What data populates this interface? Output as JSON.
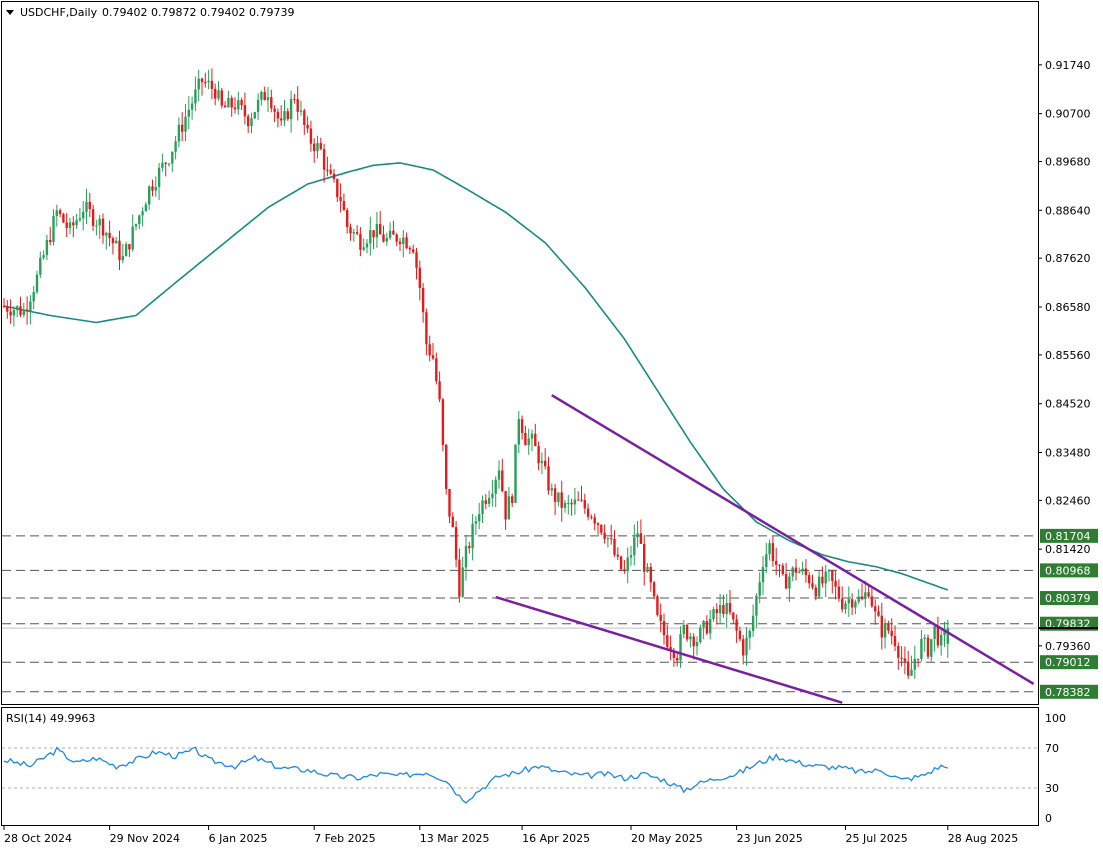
{
  "header": {
    "symbol": "USDCHF,Daily",
    "ohlc": "0.79402 0.79872 0.79402 0.79739"
  },
  "rsi_header": "RSI(14) 49.9963",
  "colors": {
    "bull": "#26a05a",
    "bear": "#e31b1b",
    "ma": "#178a84",
    "rsi": "#1e88e5",
    "trend": "#7b1fa2",
    "tag_bg": "#2e7d32",
    "grid": "#555555"
  },
  "chart_data": {
    "type": "candlestick",
    "timeframe": "Daily",
    "y_ticks": [
      "0.91740",
      "0.90700",
      "0.89680",
      "0.88640",
      "0.87620",
      "0.86580",
      "0.85560",
      "0.84520",
      "0.83480",
      "0.82460",
      "0.81420",
      "0.79360"
    ],
    "price_ylim": [
      0.781,
      0.931
    ],
    "x_labels": [
      "28 Oct 2024",
      "29 Nov 2024",
      "6 Jan 2025",
      "7 Feb 2025",
      "13 Mar 2025",
      "16 Apr 2025",
      "20 May 2025",
      "23 Jun 2025",
      "25 Jul 2025",
      "28 Aug 2025"
    ],
    "last_close": 0.79739,
    "levels": [
      {
        "label": "0.81704",
        "value": 0.81704
      },
      {
        "label": "0.80968",
        "value": 0.80968
      },
      {
        "label": "0.80379",
        "value": 0.80379
      },
      {
        "label": "0.79832",
        "value": 0.79832
      },
      {
        "label": "0.79012",
        "value": 0.79012
      },
      {
        "label": "0.78382",
        "value": 0.78382
      }
    ],
    "path": [
      [
        0,
        0.866
      ],
      [
        6,
        0.865
      ],
      [
        10,
        0.872
      ],
      [
        16,
        0.886
      ],
      [
        20,
        0.882
      ],
      [
        24,
        0.887
      ],
      [
        30,
        0.883
      ],
      [
        36,
        0.876
      ],
      [
        44,
        0.891
      ],
      [
        50,
        0.898
      ],
      [
        56,
        0.908
      ],
      [
        60,
        0.914
      ],
      [
        64,
        0.912
      ],
      [
        66,
        0.908
      ],
      [
        70,
        0.909
      ],
      [
        74,
        0.906
      ],
      [
        80,
        0.912
      ],
      [
        84,
        0.904
      ],
      [
        88,
        0.911
      ],
      [
        92,
        0.902
      ],
      [
        96,
        0.899
      ],
      [
        98,
        0.894
      ],
      [
        102,
        0.889
      ],
      [
        104,
        0.883
      ],
      [
        108,
        0.88
      ],
      [
        112,
        0.882
      ],
      [
        116,
        0.88
      ],
      [
        120,
        0.881
      ],
      [
        124,
        0.879
      ],
      [
        126,
        0.87
      ],
      [
        128,
        0.858
      ],
      [
        130,
        0.855
      ],
      [
        132,
        0.845
      ],
      [
        134,
        0.826
      ],
      [
        136,
        0.818
      ],
      [
        138,
        0.806
      ],
      [
        140,
        0.813
      ],
      [
        144,
        0.823
      ],
      [
        148,
        0.828
      ],
      [
        150,
        0.832
      ],
      [
        152,
        0.822
      ],
      [
        154,
        0.826
      ],
      [
        156,
        0.843
      ],
      [
        158,
        0.838
      ],
      [
        160,
        0.837
      ],
      [
        162,
        0.834
      ],
      [
        164,
        0.83
      ],
      [
        166,
        0.826
      ],
      [
        170,
        0.823
      ],
      [
        174,
        0.824
      ],
      [
        178,
        0.822
      ],
      [
        182,
        0.818
      ],
      [
        184,
        0.815
      ],
      [
        186,
        0.811
      ],
      [
        188,
        0.809
      ],
      [
        192,
        0.818
      ],
      [
        194,
        0.811
      ],
      [
        196,
        0.806
      ],
      [
        198,
        0.799
      ],
      [
        200,
        0.796
      ],
      [
        204,
        0.792
      ],
      [
        206,
        0.797
      ],
      [
        210,
        0.795
      ],
      [
        214,
        0.799
      ],
      [
        218,
        0.802
      ],
      [
        220,
        0.8
      ],
      [
        224,
        0.793
      ],
      [
        226,
        0.796
      ],
      [
        230,
        0.812
      ],
      [
        232,
        0.815
      ],
      [
        236,
        0.807
      ],
      [
        240,
        0.81
      ],
      [
        244,
        0.808
      ],
      [
        246,
        0.806
      ],
      [
        250,
        0.808
      ],
      [
        254,
        0.803
      ],
      [
        258,
        0.804
      ],
      [
        260,
        0.803
      ],
      [
        262,
        0.806
      ],
      [
        264,
        0.8
      ],
      [
        266,
        0.797
      ],
      [
        268,
        0.797
      ],
      [
        270,
        0.795
      ],
      [
        272,
        0.791
      ],
      [
        274,
        0.786
      ],
      [
        276,
        0.791
      ],
      [
        278,
        0.794
      ],
      [
        280,
        0.793
      ],
      [
        282,
        0.797
      ],
      [
        284,
        0.794
      ],
      [
        286,
        0.797
      ]
    ],
    "ma": {
      "period_label": "",
      "path": [
        [
          0,
          0.866
        ],
        [
          14,
          0.864
        ],
        [
          28,
          0.8625
        ],
        [
          40,
          0.864
        ],
        [
          52,
          0.871
        ],
        [
          66,
          0.879
        ],
        [
          80,
          0.887
        ],
        [
          92,
          0.892
        ],
        [
          104,
          0.8945
        ],
        [
          112,
          0.896
        ],
        [
          120,
          0.8965
        ],
        [
          130,
          0.895
        ],
        [
          140,
          0.891
        ],
        [
          152,
          0.886
        ],
        [
          164,
          0.8795
        ],
        [
          176,
          0.87
        ],
        [
          188,
          0.859
        ],
        [
          198,
          0.848
        ],
        [
          208,
          0.837
        ],
        [
          218,
          0.827
        ],
        [
          228,
          0.82
        ],
        [
          238,
          0.816
        ],
        [
          248,
          0.813
        ],
        [
          256,
          0.8115
        ],
        [
          264,
          0.8105
        ],
        [
          272,
          0.809
        ],
        [
          280,
          0.807
        ],
        [
          286,
          0.8055
        ]
      ]
    },
    "trendlines": [
      {
        "name": "upper",
        "p1": [
          166,
          0.847
        ],
        "p2": [
          312,
          0.7855
        ]
      },
      {
        "name": "lower",
        "p1": [
          149,
          0.804
        ],
        "p2": [
          254,
          0.7815
        ]
      }
    ],
    "rsi": {
      "label": "RSI(14)",
      "value": 49.9963,
      "ylim": [
        0,
        100
      ],
      "ticks": [
        "100",
        "70",
        "30",
        "0"
      ],
      "levels": [
        70,
        30
      ],
      "path": [
        [
          0,
          58
        ],
        [
          8,
          52
        ],
        [
          16,
          68
        ],
        [
          22,
          55
        ],
        [
          28,
          60
        ],
        [
          34,
          52
        ],
        [
          40,
          58
        ],
        [
          46,
          66
        ],
        [
          52,
          62
        ],
        [
          58,
          68
        ],
        [
          62,
          58
        ],
        [
          70,
          52
        ],
        [
          76,
          60
        ],
        [
          84,
          50
        ],
        [
          92,
          48
        ],
        [
          100,
          42
        ],
        [
          108,
          40
        ],
        [
          114,
          44
        ],
        [
          120,
          42
        ],
        [
          128,
          46
        ],
        [
          134,
          38
        ],
        [
          138,
          22
        ],
        [
          140,
          18
        ],
        [
          144,
          28
        ],
        [
          150,
          42
        ],
        [
          156,
          46
        ],
        [
          162,
          52
        ],
        [
          168,
          46
        ],
        [
          176,
          42
        ],
        [
          182,
          44
        ],
        [
          188,
          40
        ],
        [
          194,
          44
        ],
        [
          200,
          38
        ],
        [
          206,
          28
        ],
        [
          210,
          34
        ],
        [
          216,
          40
        ],
        [
          222,
          44
        ],
        [
          228,
          54
        ],
        [
          234,
          62
        ],
        [
          240,
          56
        ],
        [
          246,
          52
        ],
        [
          254,
          50
        ],
        [
          260,
          46
        ],
        [
          266,
          48
        ],
        [
          272,
          38
        ],
        [
          278,
          42
        ],
        [
          284,
          52
        ],
        [
          286,
          50
        ]
      ]
    }
  }
}
